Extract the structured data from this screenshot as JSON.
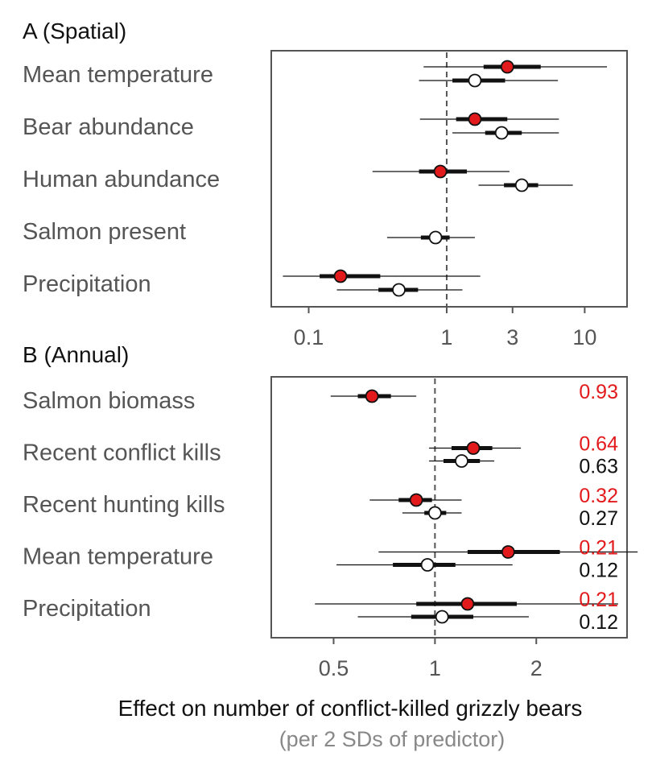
{
  "chart_data": [
    {
      "type": "forest",
      "panel": "A",
      "title": "A (Spatial)",
      "x_scale": "log",
      "xlim": [
        0.055,
        20
      ],
      "reference_line": 1,
      "ticks": [
        0.1,
        1,
        3,
        10
      ],
      "tick_labels": [
        "0.1",
        "1",
        "3",
        "10"
      ],
      "categories": [
        "Mean temperature",
        "Bear abundance",
        "Human abundance",
        "Salmon present",
        "Precipitation"
      ],
      "series": [
        {
          "marker": "filled",
          "color": "#e31a1c",
          "points": [
            {
              "category": "Mean temperature",
              "estimate": 2.75,
              "inner": [
                1.85,
                4.8
              ],
              "outer": [
                0.68,
                14.5
              ]
            },
            {
              "category": "Bear abundance",
              "estimate": 1.6,
              "inner": [
                1.17,
                2.75
              ],
              "outer": [
                0.64,
                6.5
              ]
            },
            {
              "category": "Human abundance",
              "estimate": 0.9,
              "inner": [
                0.63,
                1.4
              ],
              "outer": [
                0.29,
                2.85
              ]
            },
            {
              "category": "Salmon present",
              "estimate": null,
              "inner": null,
              "outer": null
            },
            {
              "category": "Precipitation",
              "estimate": 0.17,
              "inner": [
                0.12,
                0.33
              ],
              "outer": [
                0.065,
                1.75
              ]
            }
          ]
        },
        {
          "marker": "open",
          "color": "#ffffff",
          "points": [
            {
              "category": "Mean temperature",
              "estimate": 1.6,
              "inner": [
                1.1,
                2.65
              ],
              "outer": [
                0.63,
                6.4
              ]
            },
            {
              "category": "Bear abundance",
              "estimate": 2.5,
              "inner": [
                1.9,
                3.5
              ],
              "outer": [
                1.1,
                6.5
              ]
            },
            {
              "category": "Human abundance",
              "estimate": 3.5,
              "inner": [
                2.6,
                4.6
              ],
              "outer": [
                1.7,
                8.2
              ]
            },
            {
              "category": "Salmon present",
              "estimate": 0.83,
              "inner": [
                0.65,
                1.05
              ],
              "outer": [
                0.37,
                1.6
              ]
            },
            {
              "category": "Precipitation",
              "estimate": 0.45,
              "inner": [
                0.32,
                0.62
              ],
              "outer": [
                0.16,
                1.3
              ]
            }
          ]
        }
      ]
    },
    {
      "type": "forest",
      "panel": "B",
      "title": "B (Annual)",
      "x_scale": "log",
      "xlim": [
        0.33,
        3.7
      ],
      "reference_line": 1,
      "ticks": [
        0.5,
        1,
        2
      ],
      "tick_labels": [
        "0.5",
        "1",
        "2"
      ],
      "categories": [
        "Salmon biomass",
        "Recent conflict kills",
        "Recent hunting kills",
        "Mean temperature",
        "Precipitation"
      ],
      "series": [
        {
          "marker": "filled",
          "color": "#e31a1c",
          "points": [
            {
              "category": "Salmon biomass",
              "estimate": 0.65,
              "inner": [
                0.59,
                0.74
              ],
              "outer": [
                0.49,
                0.88
              ],
              "value_label": "0.93"
            },
            {
              "category": "Recent conflict kills",
              "estimate": 1.3,
              "inner": [
                1.12,
                1.48
              ],
              "outer": [
                0.96,
                1.8
              ],
              "value_label": "0.64"
            },
            {
              "category": "Recent hunting kills",
              "estimate": 0.88,
              "inner": [
                0.78,
                0.98
              ],
              "outer": [
                0.64,
                1.2
              ],
              "value_label": "0.32"
            },
            {
              "category": "Mean temperature",
              "estimate": 1.65,
              "inner": [
                1.25,
                2.35
              ],
              "outer": [
                0.68,
                4.0
              ],
              "value_label": "0.21"
            },
            {
              "category": "Precipitation",
              "estimate": 1.25,
              "inner": [
                0.88,
                1.75
              ],
              "outer": [
                0.44,
                3.5
              ],
              "value_label": "0.21"
            }
          ]
        },
        {
          "marker": "open",
          "color": "#ffffff",
          "points": [
            {
              "category": "Recent conflict kills",
              "estimate": 1.2,
              "inner": [
                1.06,
                1.36
              ],
              "outer": [
                0.96,
                1.5
              ],
              "value_label": "0.63"
            },
            {
              "category": "Recent hunting kills",
              "estimate": 1.0,
              "inner": [
                0.93,
                1.08
              ],
              "outer": [
                0.8,
                1.2
              ],
              "value_label": "0.27"
            },
            {
              "category": "Mean temperature",
              "estimate": 0.95,
              "inner": [
                0.75,
                1.15
              ],
              "outer": [
                0.51,
                1.7
              ],
              "value_label": "0.12"
            },
            {
              "category": "Precipitation",
              "estimate": 1.05,
              "inner": [
                0.85,
                1.3
              ],
              "outer": [
                0.59,
                1.9
              ],
              "value_label": "0.12"
            }
          ]
        }
      ]
    }
  ],
  "xlabel": "Effect on number of conflict-killed grizzly bears",
  "xsublabel": "(per 2 SDs of predictor)",
  "colors": {
    "filled_marker": "#e31a1c",
    "open_marker": "#ffffff",
    "prob_filled": "#e31a1c",
    "prob_open": "#111111",
    "axis": "#555555"
  }
}
